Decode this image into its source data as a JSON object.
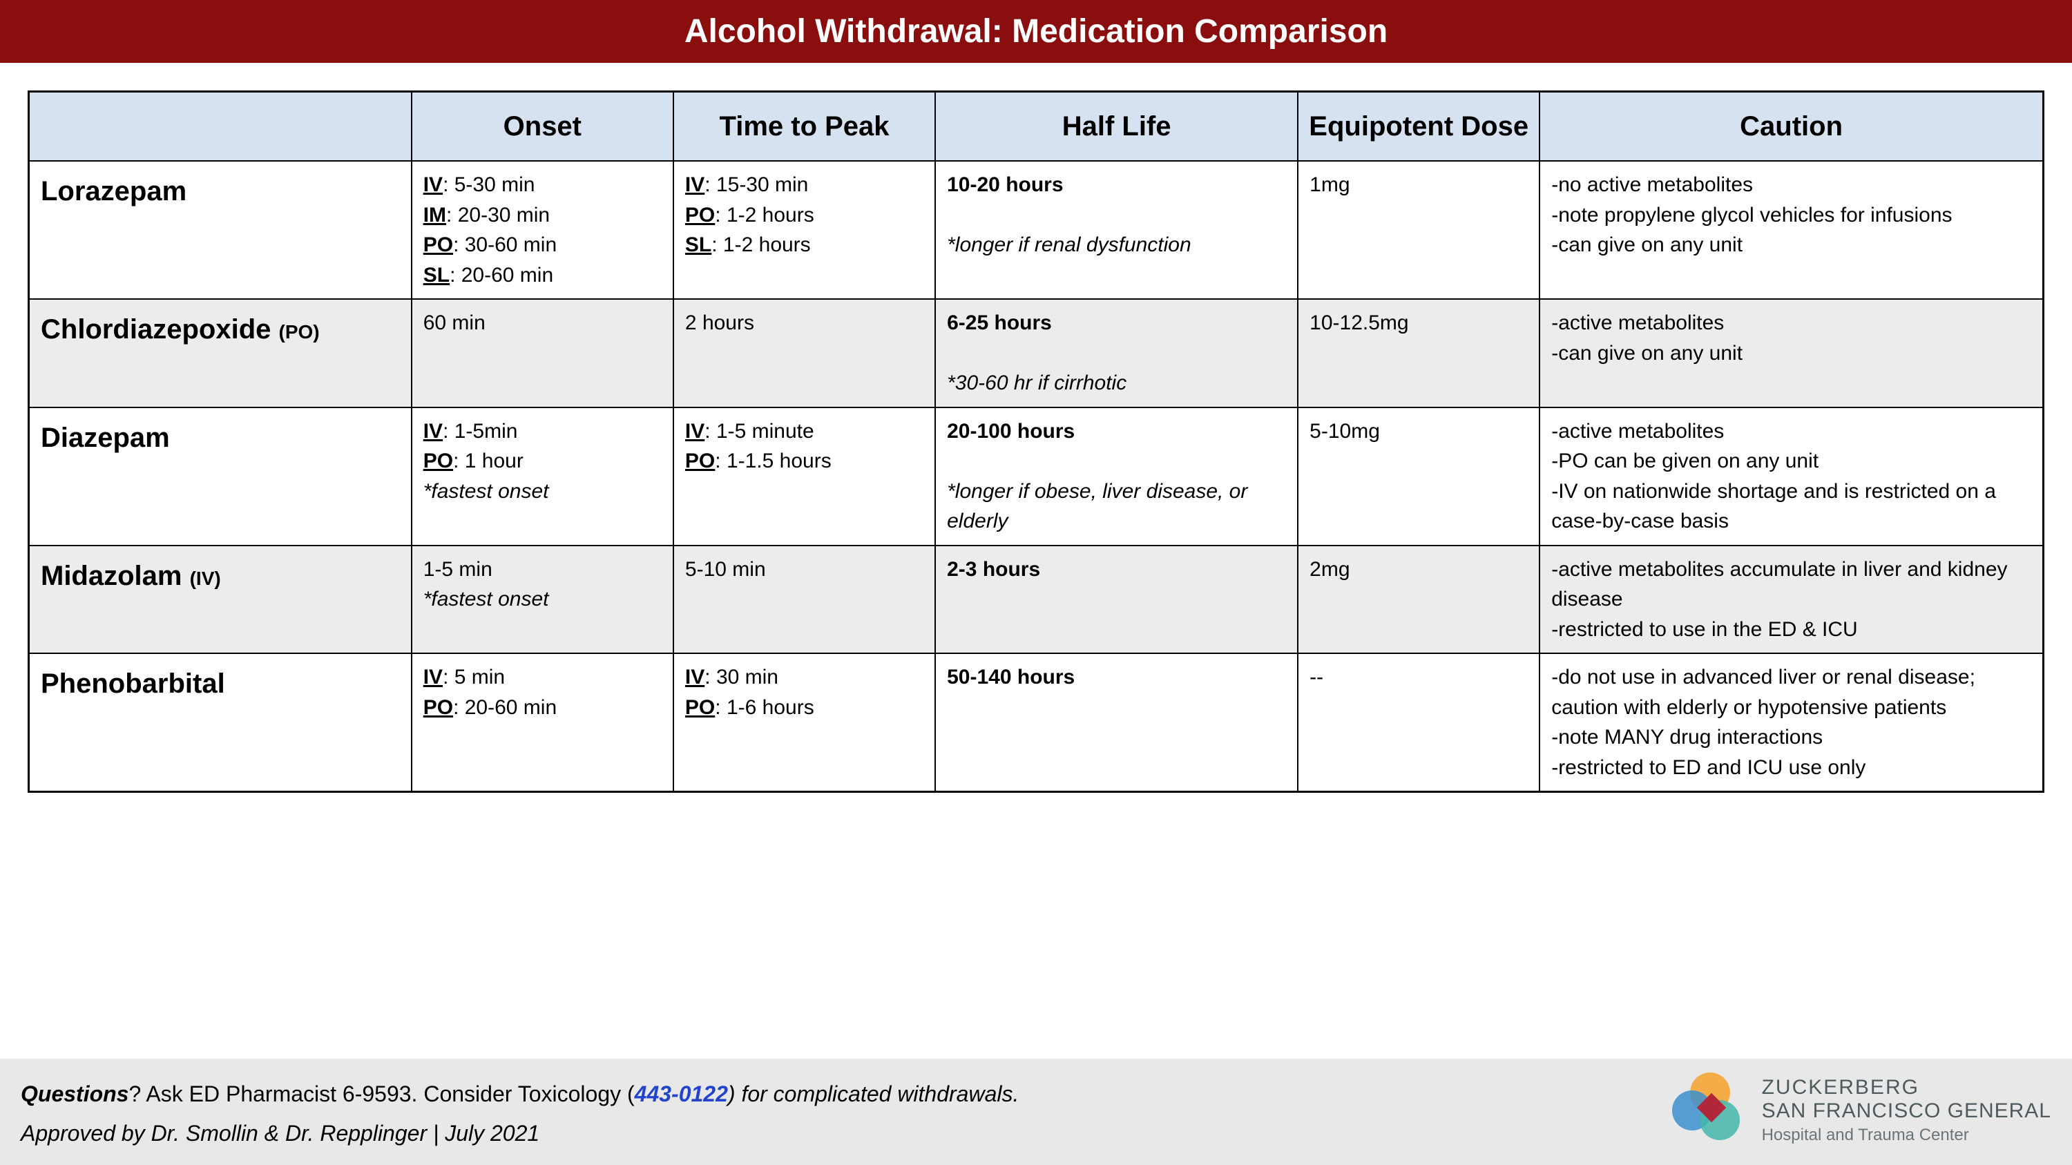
{
  "header": {
    "title": "Alcohol Withdrawal: Medication Comparison"
  },
  "columns": [
    "",
    "Onset",
    "Time to Peak",
    "Half Life",
    "Equipotent Dose",
    "Caution"
  ],
  "rows": [
    {
      "drug": "Lorazepam",
      "drug_route": "",
      "shaded": false,
      "onset_routes": [
        [
          "IV",
          "5-30 min"
        ],
        [
          "IM",
          "20-30 min"
        ],
        [
          "PO",
          "30-60 min"
        ],
        [
          "SL",
          "20-60 min"
        ]
      ],
      "onset_note": "",
      "peak_routes": [
        [
          "IV",
          "15-30 min"
        ],
        [
          "PO",
          "1-2 hours"
        ],
        [
          "SL",
          "1-2 hours"
        ]
      ],
      "half_main": "10-20 hours",
      "half_note": "*longer if renal dysfunction",
      "dose": "1mg",
      "caution": [
        "-no active metabolites",
        "-note propylene glycol vehicles for infusions",
        "-can give on any unit"
      ]
    },
    {
      "drug": "Chlordiazepoxide",
      "drug_route": "(PO)",
      "shaded": true,
      "onset_plain": "60 min",
      "onset_note": "",
      "peak_plain": "2 hours",
      "half_main": "6-25 hours",
      "half_note": "*30-60 hr if cirrhotic",
      "dose": "10-12.5mg",
      "caution": [
        "-active metabolites",
        "-can give on any unit"
      ]
    },
    {
      "drug": "Diazepam",
      "drug_route": "",
      "shaded": false,
      "onset_routes": [
        [
          "IV",
          "1-5min"
        ],
        [
          "PO",
          "1 hour"
        ]
      ],
      "onset_note": "*fastest onset",
      "peak_routes": [
        [
          "IV",
          "1-5 minute"
        ],
        [
          "PO",
          "1-1.5 hours"
        ]
      ],
      "half_main": "20-100 hours",
      "half_note": " *longer if obese, liver disease, or elderly",
      "dose": "5-10mg",
      "caution": [
        "-active metabolites",
        "-PO can be given on any unit",
        "-IV on nationwide shortage and is restricted on a case-by-case basis"
      ]
    },
    {
      "drug": "Midazolam",
      "drug_route": "(IV)",
      "shaded": true,
      "onset_plain": " 1-5 min",
      "onset_note": "*fastest onset",
      "peak_plain": " 5-10 min",
      "half_main": "2-3 hours",
      "half_note": "",
      "dose": "2mg",
      "caution": [
        "-active metabolites accumulate in liver and kidney disease",
        "-restricted to use in the ED & ICU"
      ]
    },
    {
      "drug": "Phenobarbital",
      "drug_route": "",
      "shaded": false,
      "onset_routes": [
        [
          "IV",
          "5 min"
        ],
        [
          "PO",
          "20-60 min"
        ]
      ],
      "onset_note": "",
      "peak_routes": [
        [
          "IV",
          "30 min"
        ],
        [
          "PO",
          "1-6 hours"
        ]
      ],
      "half_main": "50-140 hours",
      "half_note": "",
      "dose": "--",
      "caution": [
        "-do not use in advanced liver or renal disease; caution with elderly or hypotensive patients",
        "-note MANY drug interactions",
        "-restricted to ED and ICU use only"
      ]
    }
  ],
  "footer": {
    "questions_label": "Questions",
    "questions_text": "? Ask ED Pharmacist 6-9593. Consider Toxicology (",
    "phone": "443-0122",
    "questions_tail": ") for complicated withdrawals.",
    "approved": "Approved by Dr. Smollin & Dr. Repplinger  |  July 2021",
    "logo": {
      "l1": "ZUCKERBERG",
      "l2": "SAN FRANCISCO GENERAL",
      "l3": "Hospital and Trauma Center"
    }
  },
  "colors": {
    "header_bg": "#8b0e0e",
    "th_bg": "#d6e2f0",
    "shaded_bg": "#ececec",
    "footer_bg": "#e8e8e8",
    "link": "#2244cc"
  }
}
